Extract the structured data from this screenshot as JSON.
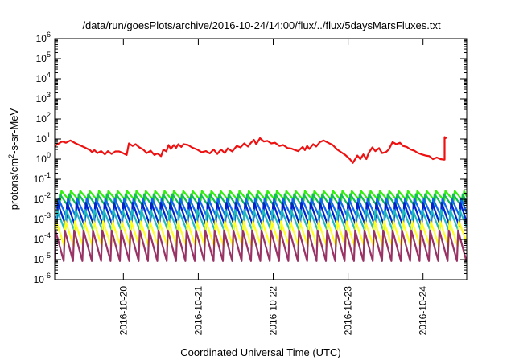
{
  "chart_data": {
    "type": "line",
    "title": "/data/run/goesPlots/archive/2016-10-24/14:00/flux/../flux/5daysMarsFluxes.txt",
    "xlabel": "Coordinated Universal Time (UTC)",
    "ylabel": {
      "prefix": "protons/cm",
      "sup": "2",
      "suffix": "-s-sr-MeV"
    },
    "x_start": "2016-10-19T02:00",
    "x_end": "2016-10-24T14:00",
    "x_ticks": [
      "2016-10-20",
      "2016-10-21",
      "2016-10-22",
      "2016-10-23",
      "2016-10-24"
    ],
    "y_scale": "log",
    "ylim": [
      1e-06,
      1000000.0
    ],
    "y_tick_exponents": [
      -6,
      -5,
      -4,
      -3,
      -2,
      -1,
      0,
      1,
      2,
      3,
      4,
      5,
      6
    ],
    "grid": false,
    "legend": "none",
    "series": [
      {
        "color": "#ee1111",
        "style": "sawtooth-segments",
        "points": [
          [
            0.0,
            4.5
          ],
          [
            0.1,
            7.5
          ],
          [
            0.15,
            6.5
          ],
          [
            0.21,
            8.5
          ],
          [
            0.28,
            6.0
          ],
          [
            0.4,
            3.8
          ],
          [
            0.47,
            2.8
          ],
          [
            0.5,
            2.2
          ],
          [
            0.53,
            2.8
          ],
          [
            0.57,
            2.0
          ],
          [
            0.62,
            2.5
          ],
          [
            0.67,
            1.7
          ],
          [
            0.71,
            2.5
          ],
          [
            0.76,
            1.8
          ],
          [
            0.81,
            2.4
          ],
          [
            0.86,
            2.4
          ],
          [
            0.91,
            2.0
          ],
          [
            0.96,
            1.6
          ],
          [
            0.99,
            6.0
          ],
          [
            1.04,
            4.5
          ],
          [
            1.08,
            5.5
          ],
          [
            1.13,
            3.8
          ],
          [
            1.18,
            3.0
          ],
          [
            1.23,
            2.0
          ],
          [
            1.28,
            2.6
          ],
          [
            1.33,
            1.6
          ],
          [
            1.37,
            1.9
          ],
          [
            1.42,
            1.4
          ],
          [
            1.45,
            3.0
          ],
          [
            1.49,
            2.4
          ],
          [
            1.52,
            5.0
          ],
          [
            1.55,
            3.2
          ],
          [
            1.59,
            5.0
          ],
          [
            1.62,
            3.6
          ],
          [
            1.65,
            5.5
          ],
          [
            1.69,
            4.0
          ],
          [
            1.72,
            5.5
          ],
          [
            1.78,
            5.0
          ],
          [
            1.83,
            3.8
          ],
          [
            1.9,
            3.0
          ],
          [
            1.96,
            2.2
          ],
          [
            2.02,
            2.5
          ],
          [
            2.07,
            1.9
          ],
          [
            2.12,
            3.0
          ],
          [
            2.17,
            1.8
          ],
          [
            2.22,
            3.0
          ],
          [
            2.27,
            2.0
          ],
          [
            2.31,
            3.4
          ],
          [
            2.37,
            2.4
          ],
          [
            2.43,
            4.5
          ],
          [
            2.48,
            3.8
          ],
          [
            2.53,
            6.0
          ],
          [
            2.58,
            4.2
          ],
          [
            2.62,
            6.5
          ],
          [
            2.66,
            9.0
          ],
          [
            2.69,
            5.5
          ],
          [
            2.74,
            11.0
          ],
          [
            2.79,
            7.5
          ],
          [
            2.84,
            8.0
          ],
          [
            2.89,
            6.0
          ],
          [
            2.94,
            6.5
          ],
          [
            3.0,
            4.5
          ],
          [
            3.05,
            5.0
          ],
          [
            3.11,
            3.5
          ],
          [
            3.16,
            3.3
          ],
          [
            3.21,
            2.8
          ],
          [
            3.25,
            2.5
          ],
          [
            3.31,
            4.0
          ],
          [
            3.34,
            2.8
          ],
          [
            3.37,
            4.5
          ],
          [
            3.4,
            3.2
          ],
          [
            3.45,
            5.5
          ],
          [
            3.49,
            4.2
          ],
          [
            3.54,
            7.0
          ],
          [
            3.59,
            8.5
          ],
          [
            3.65,
            6.5
          ],
          [
            3.71,
            5.0
          ],
          [
            3.77,
            3.0
          ],
          [
            3.84,
            2.0
          ],
          [
            3.88,
            1.6
          ],
          [
            3.94,
            1.0
          ],
          [
            3.98,
            0.65
          ],
          [
            4.04,
            1.5
          ],
          [
            4.08,
            1.0
          ],
          [
            4.12,
            1.7
          ],
          [
            4.16,
            1.0
          ],
          [
            4.19,
            2.0
          ],
          [
            4.24,
            3.8
          ],
          [
            4.28,
            2.5
          ],
          [
            4.33,
            3.5
          ],
          [
            4.37,
            2.0
          ],
          [
            4.42,
            2.2
          ],
          [
            4.46,
            3.0
          ],
          [
            4.51,
            7.0
          ],
          [
            4.56,
            5.5
          ],
          [
            4.61,
            6.5
          ],
          [
            4.65,
            4.5
          ],
          [
            4.7,
            4.0
          ],
          [
            4.75,
            3.0
          ],
          [
            4.8,
            2.6
          ],
          [
            4.85,
            2.0
          ],
          [
            4.9,
            1.7
          ],
          [
            4.95,
            1.5
          ],
          [
            5.0,
            1.4
          ],
          [
            5.05,
            1.0
          ],
          [
            5.1,
            1.2
          ],
          [
            5.15,
            1.0
          ],
          [
            5.19,
            0.95
          ],
          [
            5.205,
            0.95
          ],
          [
            5.205,
            12.5
          ],
          [
            5.23,
            11.0
          ]
        ]
      },
      {
        "color": "#33ee11",
        "style": "sawtooth",
        "period": 0.125,
        "phase": 0.05,
        "peak": 0.026,
        "trough": 0.0085
      },
      {
        "color": "#11bb55",
        "style": "sawtooth",
        "period": 0.125,
        "phase": 0.07,
        "peak": 0.018,
        "trough": 0.0045
      },
      {
        "color": "#1166ee",
        "style": "sawtooth",
        "period": 0.125,
        "phase": 0.09,
        "peak": 0.011,
        "trough": 0.0013
      },
      {
        "color": "#0022cc",
        "style": "sawtooth",
        "period": 0.125,
        "phase": 0.1,
        "peak": 0.0068,
        "trough": 0.00045
      },
      {
        "color": "#22bbbb",
        "style": "sawtooth",
        "period": 0.125,
        "phase": 0.11,
        "peak": 0.003,
        "trough": 0.00026
      },
      {
        "color": "#ffff22",
        "style": "sawtooth",
        "period": 0.125,
        "phase": 0.12,
        "peak": 0.0008,
        "trough": 4.5e-05
      },
      {
        "color": "#993366",
        "style": "sawtooth",
        "period": 0.125,
        "phase": 0.13,
        "peak": 0.00028,
        "trough": 8.5e-06
      }
    ]
  }
}
